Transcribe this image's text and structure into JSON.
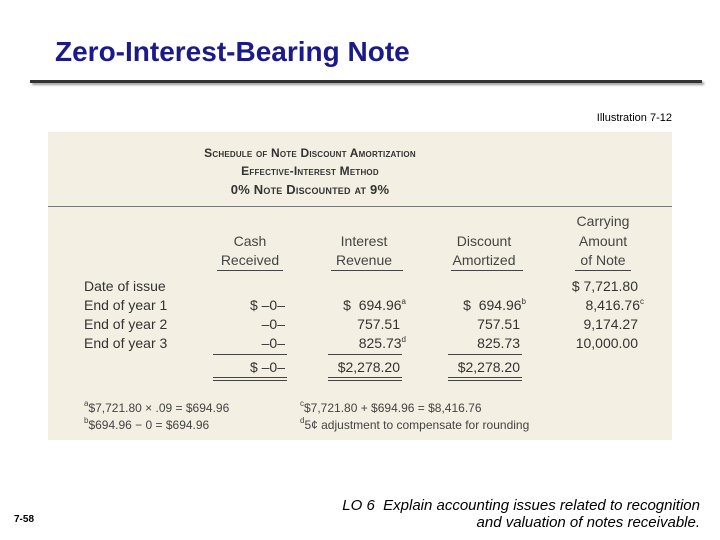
{
  "header": {
    "title": "Zero-Interest-Bearing Note",
    "illustration": "Illustration 7-12"
  },
  "table": {
    "caption": [
      "Schedule of Note Discount Amortization",
      "Effective-Interest Method",
      "0% Note Discounted at 9%"
    ],
    "columns": [
      [
        "Cash",
        "Received"
      ],
      [
        "Interest",
        "Revenue"
      ],
      [
        "Discount",
        "Amortized"
      ],
      [
        "Carrying",
        "Amount",
        "of Note"
      ]
    ],
    "rows": [
      [
        "Date of issue",
        null,
        null,
        null,
        "$ 7,721.80"
      ],
      [
        "End of year 1",
        "$ –0–",
        {
          "text": "$  694.96",
          "sup": "a"
        },
        {
          "text": "$  694.96",
          "sup": "b"
        },
        {
          "text": "8,416.76",
          "sup": "c"
        }
      ],
      [
        "End of year 2",
        "–0–",
        "757.51",
        "757.51",
        "9,174.27"
      ],
      [
        "End of year 3",
        "–0–",
        {
          "text": "825.73",
          "sup": "d"
        },
        "825.73",
        "10,000.00"
      ]
    ],
    "totals": [
      "$ –0–",
      "$2,278.20",
      "$2,278.20"
    ],
    "footnotes": [
      {
        "mark": "a",
        "text": "$7,721.80 × .09 = $694.96"
      },
      {
        "mark": "b",
        "text": "$694.96 − 0 = $694.96"
      },
      {
        "mark": "c",
        "text": "$7,721.80 + $694.96 = $8,416.76"
      },
      {
        "mark": "d",
        "text": "5¢ adjustment to compensate for rounding"
      }
    ]
  },
  "footer": {
    "slide_number": "7-58",
    "objective": [
      "LO 6  Explain accounting issues related to recognition",
      "and valuation of notes receivable."
    ]
  }
}
